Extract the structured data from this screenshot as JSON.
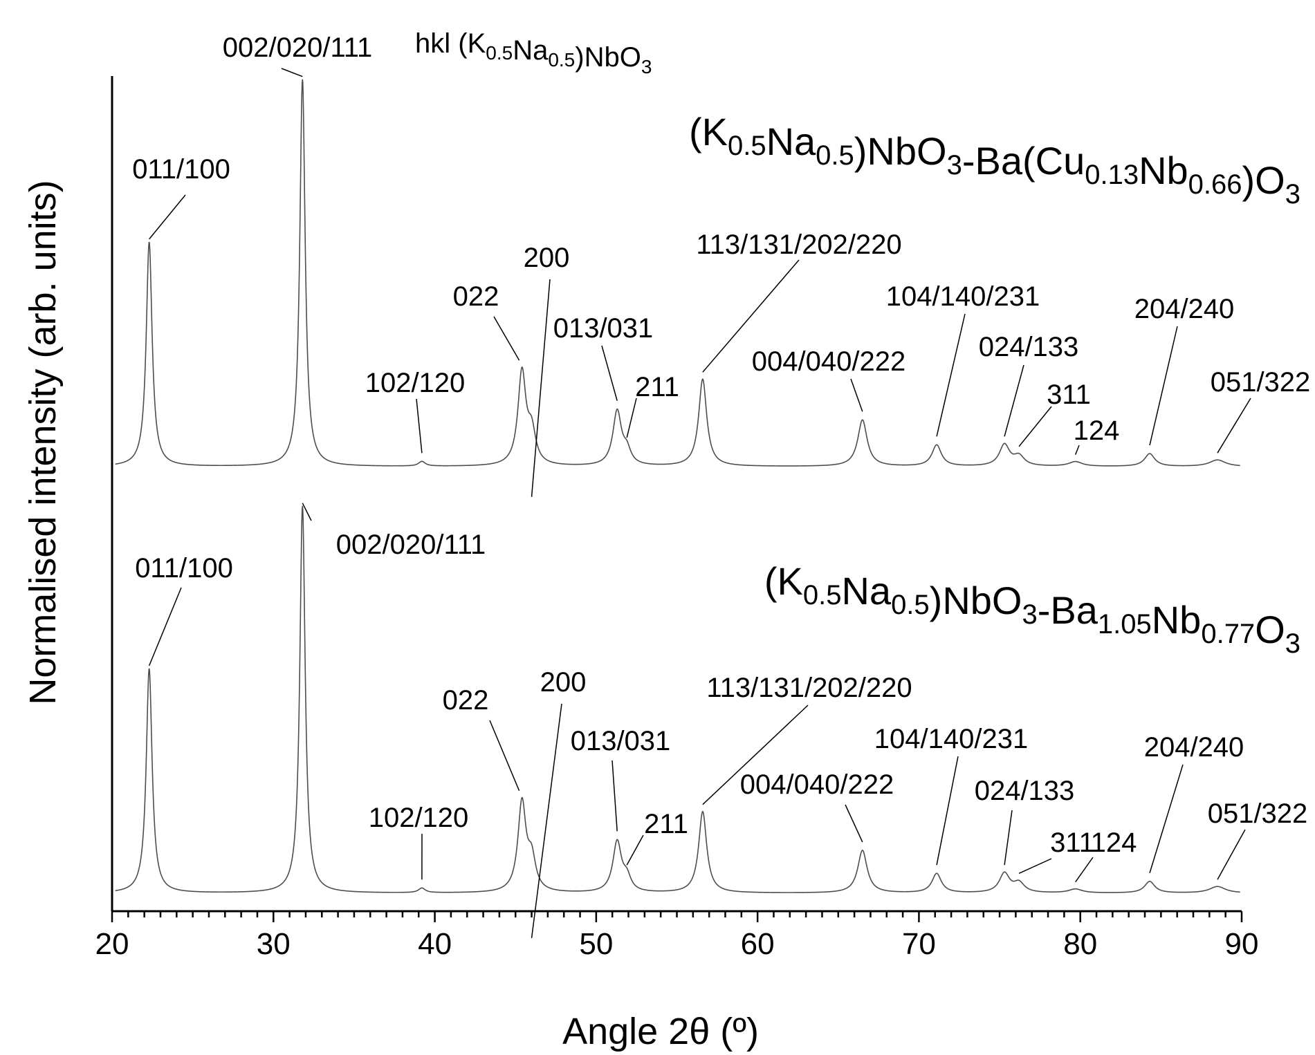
{
  "chart_data": {
    "type": "line",
    "title": "hkl (K0.5Na0.5)NbO3",
    "xlabel": "Angle 2θ (º)",
    "ylabel": "Normalised intensity (arb. units)",
    "xlim": [
      20,
      90
    ],
    "xticks": [
      "20",
      "30",
      "40",
      "50",
      "60",
      "70",
      "80",
      "90"
    ],
    "minor_tick_step": 1,
    "y_ticks_shown": false,
    "grid": false,
    "series": [
      {
        "name": "(K0.5Na0.5)NbO3-Ba(Cu0.13Nb0.66)O3",
        "name_parts": [
          {
            "t": "(K",
            "s": false
          },
          {
            "t": "0.5",
            "s": true
          },
          {
            "t": "Na",
            "s": false
          },
          {
            "t": "0.5",
            "s": true
          },
          {
            "t": ")NbO",
            "s": false
          },
          {
            "t": "3",
            "s": true
          },
          {
            "t": "-Ba(Cu",
            "s": false
          },
          {
            "t": "0.13",
            "s": true
          },
          {
            "t": "Nb",
            "s": false
          },
          {
            "t": "0.66",
            "s": true
          },
          {
            "t": ")O",
            "s": false
          },
          {
            "t": "3",
            "s": true
          }
        ],
        "peaks": [
          {
            "x": 22.3,
            "y": 58.0,
            "w": 0.22,
            "hkl": "011/100"
          },
          {
            "x": 31.8,
            "y": 100.0,
            "w": 0.2,
            "hkl": "002/020/111"
          },
          {
            "x": 39.2,
            "y": 1.2,
            "w": 0.25,
            "hkl": "102/120"
          },
          {
            "x": 45.4,
            "y": 24.0,
            "w": 0.3,
            "hkl": "022"
          },
          {
            "x": 46.0,
            "y": 8.0,
            "w": 0.3,
            "hkl": "200"
          },
          {
            "x": 51.3,
            "y": 14.0,
            "w": 0.32,
            "hkl": "013/031"
          },
          {
            "x": 51.9,
            "y": 3.5,
            "w": 0.3,
            "hkl": "211"
          },
          {
            "x": 56.6,
            "y": 22.5,
            "w": 0.3,
            "hkl": "113/131/202/220"
          },
          {
            "x": 66.5,
            "y": 12.0,
            "w": 0.35,
            "hkl": "004/040/222"
          },
          {
            "x": 71.1,
            "y": 5.5,
            "w": 0.35,
            "hkl": "104/140/231"
          },
          {
            "x": 75.3,
            "y": 5.5,
            "w": 0.38,
            "hkl": "024/133"
          },
          {
            "x": 76.2,
            "y": 2.5,
            "w": 0.4,
            "hkl": "311"
          },
          {
            "x": 79.7,
            "y": 1.2,
            "w": 0.5,
            "hkl": "124"
          },
          {
            "x": 84.3,
            "y": 3.3,
            "w": 0.38,
            "hkl": "204/240"
          },
          {
            "x": 88.5,
            "y": 1.7,
            "w": 0.6,
            "hkl": "051/322"
          }
        ]
      },
      {
        "name": "(K0.5Na0.5)NbO3-Ba1.05Nb0.77O3",
        "name_parts": [
          {
            "t": "(K",
            "s": false
          },
          {
            "t": "0.5",
            "s": true
          },
          {
            "t": "Na",
            "s": false
          },
          {
            "t": "0.5",
            "s": true
          },
          {
            "t": ")NbO",
            "s": false
          },
          {
            "t": "3",
            "s": true
          },
          {
            "t": "-Ba",
            "s": false
          },
          {
            "t": "1.05",
            "s": true
          },
          {
            "t": "Nb",
            "s": false
          },
          {
            "t": "0.77",
            "s": true
          },
          {
            "t": "O",
            "s": false
          },
          {
            "t": "3",
            "s": true
          }
        ],
        "peaks": [
          {
            "x": 22.3,
            "y": 58.0,
            "w": 0.22,
            "hkl": "011/100"
          },
          {
            "x": 31.8,
            "y": 100.0,
            "w": 0.2,
            "hkl": "002/020/111"
          },
          {
            "x": 39.2,
            "y": 1.2,
            "w": 0.25,
            "hkl": "102/120"
          },
          {
            "x": 45.4,
            "y": 23.0,
            "w": 0.3,
            "hkl": "022"
          },
          {
            "x": 46.0,
            "y": 8.0,
            "w": 0.3,
            "hkl": "200"
          },
          {
            "x": 51.3,
            "y": 13.0,
            "w": 0.32,
            "hkl": "013/031"
          },
          {
            "x": 51.9,
            "y": 3.5,
            "w": 0.3,
            "hkl": "211"
          },
          {
            "x": 56.6,
            "y": 21.0,
            "w": 0.3,
            "hkl": "113/131/202/220"
          },
          {
            "x": 66.5,
            "y": 11.0,
            "w": 0.35,
            "hkl": "004/040/222"
          },
          {
            "x": 71.1,
            "y": 5.0,
            "w": 0.35,
            "hkl": "104/140/231"
          },
          {
            "x": 75.3,
            "y": 5.0,
            "w": 0.38,
            "hkl": "024/133"
          },
          {
            "x": 76.2,
            "y": 2.5,
            "w": 0.4,
            "hkl": "311"
          },
          {
            "x": 79.7,
            "y": 1.0,
            "w": 0.5,
            "hkl": "124"
          },
          {
            "x": 84.3,
            "y": 3.0,
            "w": 0.38,
            "hkl": "204/240"
          },
          {
            "x": 88.5,
            "y": 1.7,
            "w": 0.6,
            "hkl": "051/322"
          }
        ]
      }
    ]
  },
  "figure_title_parts": [
    {
      "t": "hkl (K",
      "s": false
    },
    {
      "t": "0.5",
      "s": true
    },
    {
      "t": "Na",
      "s": false
    },
    {
      "t": "0.5",
      "s": true
    },
    {
      "t": ")NbO",
      "s": false
    },
    {
      "t": "3",
      "s": true
    }
  ]
}
